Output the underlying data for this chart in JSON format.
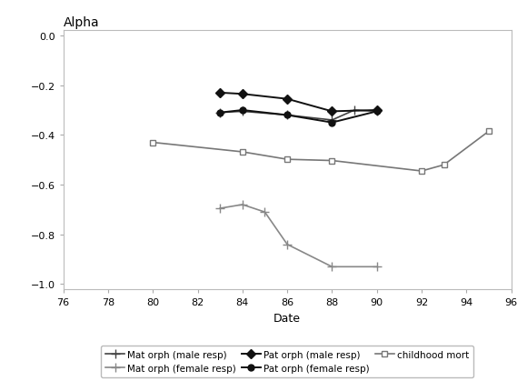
{
  "title": "Alpha",
  "xlabel": "Date",
  "xlim": [
    76,
    96
  ],
  "ylim": [
    -1.0,
    0.05
  ],
  "xticks": [
    76,
    78,
    80,
    82,
    84,
    86,
    88,
    90,
    92,
    94,
    96
  ],
  "yticks": [
    0,
    -0.2,
    -0.4,
    -0.6,
    -0.8,
    -1.0
  ],
  "series": [
    {
      "key": "mat_orph_male",
      "label": "Mat orph (male resp)",
      "x": [
        83,
        84,
        86,
        88,
        89,
        90
      ],
      "y": [
        -0.31,
        -0.305,
        -0.32,
        -0.34,
        -0.3,
        -0.305
      ],
      "color": "#444444",
      "marker": "P",
      "markersize": 5,
      "linewidth": 1.2,
      "fillstyle": "full"
    },
    {
      "key": "mat_orph_female",
      "label": "Mat orph (female resp)",
      "x": [
        83,
        84,
        85,
        86,
        88,
        90
      ],
      "y": [
        -0.695,
        -0.68,
        -0.71,
        -0.84,
        -0.93,
        -0.93
      ],
      "color": "#888888",
      "marker": "P",
      "markersize": 5,
      "linewidth": 1.2,
      "fillstyle": "full"
    },
    {
      "key": "pat_orph_male",
      "label": "Pat orph (male resp)",
      "x": [
        83,
        84,
        86,
        88,
        90
      ],
      "y": [
        -0.23,
        -0.235,
        -0.255,
        -0.305,
        -0.3
      ],
      "color": "#111111",
      "marker": "D",
      "markersize": 5,
      "linewidth": 1.4,
      "fillstyle": "full"
    },
    {
      "key": "pat_orph_female",
      "label": "Pat orph (female resp)",
      "x": [
        83,
        84,
        86,
        88,
        90
      ],
      "y": [
        -0.31,
        -0.3,
        -0.32,
        -0.35,
        -0.305
      ],
      "color": "#111111",
      "marker": "o",
      "markersize": 5,
      "linewidth": 1.4,
      "fillstyle": "full"
    },
    {
      "key": "childhood_mort",
      "label": "childhood mort",
      "x": [
        80,
        84,
        86,
        88,
        92,
        93,
        95
      ],
      "y": [
        -0.43,
        -0.468,
        -0.498,
        -0.503,
        -0.545,
        -0.52,
        -0.385
      ],
      "color": "#777777",
      "marker": "s",
      "markersize": 5,
      "linewidth": 1.2,
      "fillstyle": "none"
    }
  ],
  "background_color": "#ffffff",
  "title_fontsize": 10,
  "label_fontsize": 9,
  "tick_fontsize": 8,
  "legend_fontsize": 7.5
}
